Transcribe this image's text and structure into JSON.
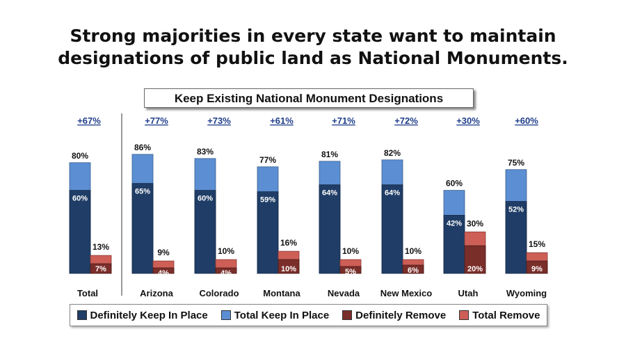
{
  "headline": {
    "line1": "Strong majorities in every state want to maintain",
    "line2": "designations of public land as National Monuments."
  },
  "chart_data": {
    "type": "bar",
    "title": "Keep Existing National Monument Designations",
    "categories": [
      "Total",
      "Arizona",
      "Colorado",
      "Montana",
      "Nevada",
      "New Mexico",
      "Utah",
      "Wyoming"
    ],
    "net_labels": [
      "+67%",
      "+77%",
      "+73%",
      "+61%",
      "+71%",
      "+72%",
      "+30%",
      "+60%"
    ],
    "series": [
      {
        "name": "Definitely Keep In Place",
        "values": [
          60,
          65,
          60,
          59,
          64,
          64,
          42,
          52
        ]
      },
      {
        "name": "Total Keep In Place",
        "values": [
          80,
          86,
          83,
          77,
          81,
          82,
          60,
          75
        ]
      },
      {
        "name": "Definitely Remove",
        "values": [
          7,
          4,
          4,
          10,
          5,
          6,
          20,
          9
        ]
      },
      {
        "name": "Total Remove",
        "values": [
          13,
          9,
          10,
          16,
          10,
          10,
          30,
          15
        ]
      }
    ],
    "colors": {
      "definitely_keep": "#1f3d66",
      "total_keep": "#5b8ed2",
      "definitely_remove": "#7a2e2a",
      "total_remove": "#cd5f57"
    },
    "ylim": [
      0,
      100
    ],
    "legend_position": "bottom"
  }
}
